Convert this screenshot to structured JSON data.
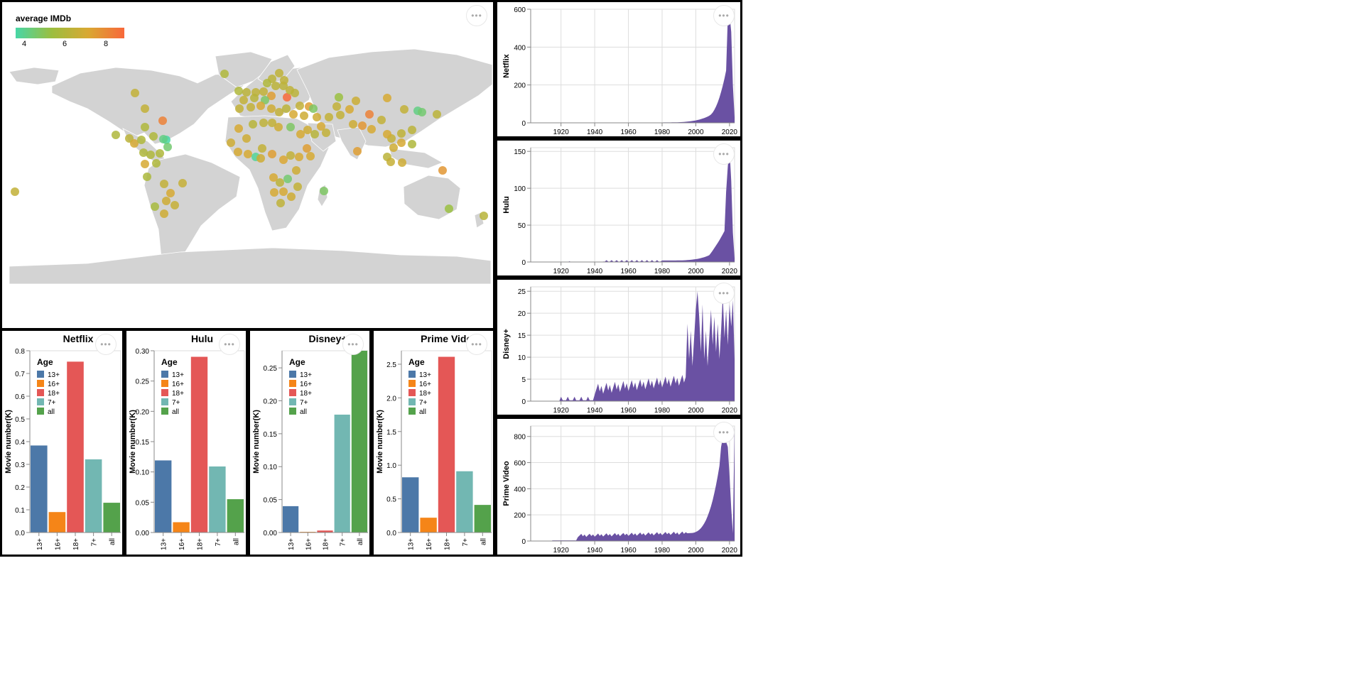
{
  "map": {
    "legend_title": "average IMDb",
    "legend_ticks": [
      "4",
      "6",
      "8"
    ],
    "colors": [
      "#47d6a6",
      "#9cbe3f",
      "#d9a832",
      "#f8683a"
    ],
    "land_color": "#d3d3d3"
  },
  "timelines": [
    {
      "ylabel": "Netflix",
      "yticks": [
        0,
        200,
        400,
        600
      ],
      "ymax": 600,
      "xticks": [
        "1920",
        "1940",
        "1960",
        "1980",
        "2000",
        "2020"
      ],
      "color": "#6a51a3"
    },
    {
      "ylabel": "Hulu",
      "yticks": [
        0,
        50,
        100,
        150
      ],
      "ymax": 155,
      "xticks": [
        "1920",
        "1940",
        "1960",
        "1980",
        "2000",
        "2020"
      ],
      "color": "#6a51a3"
    },
    {
      "ylabel": "Disney+",
      "yticks": [
        0,
        5,
        10,
        15,
        20,
        25
      ],
      "ymax": 26,
      "xticks": [
        "1920",
        "1940",
        "1960",
        "1980",
        "2000",
        "2020"
      ],
      "color": "#6a51a3"
    },
    {
      "ylabel": "Prime Video",
      "yticks": [
        0,
        200,
        400,
        600,
        800
      ],
      "ymax": 880,
      "xticks": [
        "1920",
        "1940",
        "1960",
        "1980",
        "2000",
        "2020"
      ],
      "color": "#6a51a3"
    }
  ],
  "bar_legend": {
    "title": "Age",
    "items": [
      {
        "label": "13+",
        "color": "#4c78a8"
      },
      {
        "label": "16+",
        "color": "#f58518"
      },
      {
        "label": "18+",
        "color": "#e45756"
      },
      {
        "label": "7+",
        "color": "#72b7b2"
      },
      {
        "label": "all",
        "color": "#54a24b"
      }
    ]
  },
  "chart_data": [
    {
      "type": "bar",
      "title": "Netflix",
      "ylabel": "Movie number(K)",
      "categories": [
        "13+",
        "16+",
        "18+",
        "7+",
        "all"
      ],
      "values": [
        0.383,
        0.09,
        0.752,
        0.322,
        0.131
      ],
      "yticks": [
        "0.0",
        "0.1",
        "0.2",
        "0.3",
        "0.4",
        "0.5",
        "0.6",
        "0.7",
        "0.8"
      ],
      "ylim": [
        0,
        0.8
      ]
    },
    {
      "type": "bar",
      "title": "Hulu",
      "ylabel": "Movie number(K)",
      "categories": [
        "13+",
        "16+",
        "18+",
        "7+",
        "all"
      ],
      "values": [
        0.119,
        0.017,
        0.29,
        0.109,
        0.055
      ],
      "yticks": [
        "0.00",
        "0.05",
        "0.10",
        "0.15",
        "0.20",
        "0.25",
        "0.30"
      ],
      "ylim": [
        0,
        0.3
      ]
    },
    {
      "type": "bar",
      "title": "Disney+",
      "ylabel": "Movie number(K)",
      "categories": [
        "13+",
        "16+",
        "18+",
        "7+",
        "all"
      ],
      "values": [
        0.04,
        0.001,
        0.003,
        0.179,
        0.276
      ],
      "yticks": [
        "0.00",
        "0.05",
        "0.10",
        "0.15",
        "0.20",
        "0.25"
      ],
      "ylim": [
        0,
        0.276
      ]
    },
    {
      "type": "bar",
      "title": "Prime Video",
      "ylabel": "Movie number(K)",
      "categories": [
        "13+",
        "16+",
        "18+",
        "7+",
        "all"
      ],
      "values": [
        0.82,
        0.22,
        2.61,
        0.91,
        0.41
      ],
      "yticks": [
        "0.0",
        "0.5",
        "1.0",
        "1.5",
        "2.0",
        "2.5"
      ],
      "ylim": [
        0,
        2.7
      ]
    }
  ],
  "menu_label": "•••"
}
